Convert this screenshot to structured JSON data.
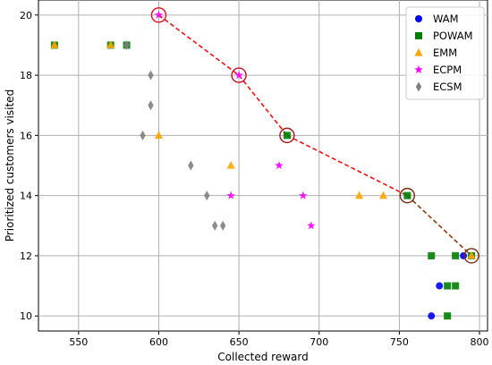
{
  "chart_data": {
    "type": "scatter",
    "xlabel": "Collected reward",
    "ylabel": "Prioritized customers visited",
    "xlim": [
      525,
      805
    ],
    "ylim": [
      9.5,
      20.5
    ],
    "xticks": [
      550,
      600,
      650,
      700,
      750,
      800
    ],
    "yticks": [
      10,
      12,
      14,
      16,
      18,
      20
    ],
    "grid": true,
    "legend": "top-right",
    "series": [
      {
        "name": "WAM",
        "marker": "circle",
        "color": "#0000ff",
        "points": [
          [
            770,
            10
          ],
          [
            775,
            11
          ],
          [
            790,
            12
          ]
        ]
      },
      {
        "name": "POWAM",
        "marker": "square",
        "color": "#008000",
        "points": [
          [
            535,
            19
          ],
          [
            570,
            19
          ],
          [
            580,
            19
          ],
          [
            680,
            16
          ],
          [
            755,
            14
          ],
          [
            770,
            12
          ],
          [
            785,
            12
          ],
          [
            795,
            12
          ],
          [
            780,
            11
          ],
          [
            785,
            11
          ],
          [
            780,
            10
          ]
        ]
      },
      {
        "name": "EMM",
        "marker": "triangle",
        "color": "#ffa500",
        "points": [
          [
            535,
            19
          ],
          [
            570,
            19
          ],
          [
            600,
            16
          ],
          [
            645,
            15
          ],
          [
            725,
            14
          ],
          [
            740,
            14
          ],
          [
            795,
            12
          ]
        ]
      },
      {
        "name": "ECPM",
        "marker": "star",
        "color": "#ff00ff",
        "points": [
          [
            600,
            20
          ],
          [
            650,
            18
          ],
          [
            675,
            15
          ],
          [
            645,
            14
          ],
          [
            690,
            14
          ],
          [
            695,
            13
          ]
        ]
      },
      {
        "name": "ECSM",
        "marker": "diamond",
        "color": "#808080",
        "points": [
          [
            580,
            19
          ],
          [
            595,
            18
          ],
          [
            595,
            17
          ],
          [
            590,
            16
          ],
          [
            620,
            15
          ],
          [
            630,
            14
          ],
          [
            635,
            13
          ],
          [
            640,
            13
          ]
        ]
      }
    ],
    "pareto_front": {
      "points": [
        [
          600,
          20
        ],
        [
          650,
          18
        ],
        [
          680,
          16
        ],
        [
          755,
          14
        ],
        [
          795,
          12
        ]
      ],
      "segment_colors": [
        "#ee1111",
        "#ee1111",
        "#ee1111",
        "#8b3a0a"
      ],
      "circle_colors": [
        "#e01020",
        "#c01020",
        "#a01818",
        "#7a2a10",
        "#7a2a10"
      ]
    }
  }
}
